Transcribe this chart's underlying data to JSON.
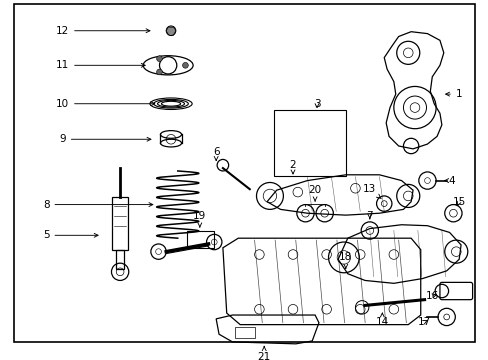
{
  "background_color": "#ffffff",
  "border_color": "#000000",
  "fig_width": 4.89,
  "fig_height": 3.6,
  "dpi": 100,
  "label_fs": 7.5
}
